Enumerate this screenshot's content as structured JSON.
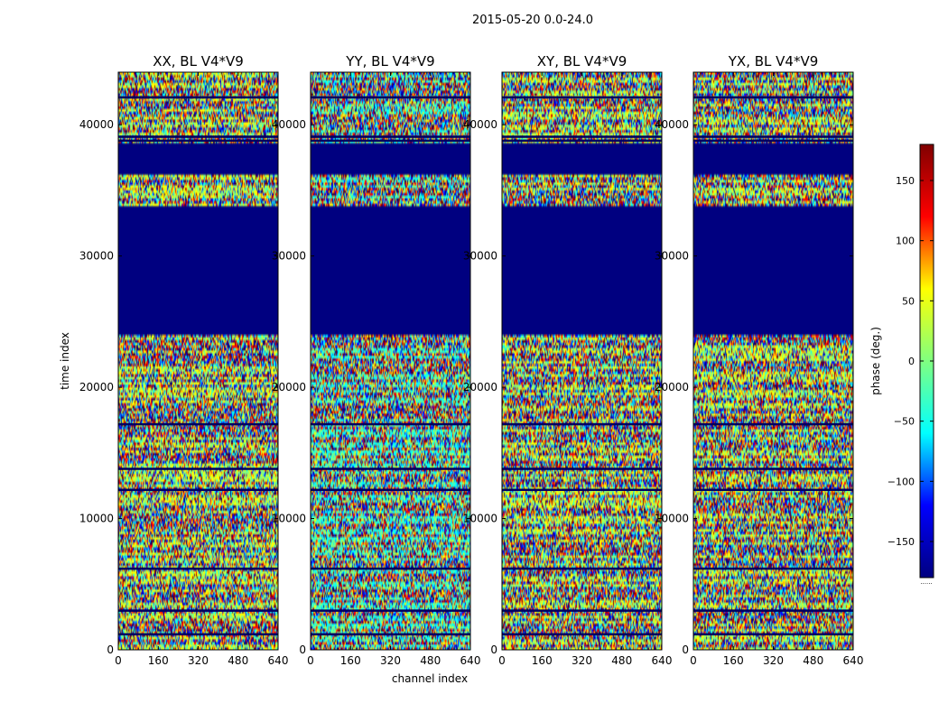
{
  "figure": {
    "title": "2015-05-20 0.0-24.0",
    "x_label": "channel index",
    "y_label": "time index"
  },
  "chart_data": {
    "type": "heatmap",
    "x_range": [
      0,
      640
    ],
    "y_range": [
      0,
      44000
    ],
    "x_ticks": [
      0,
      160,
      320,
      480,
      640
    ],
    "y_ticks": [
      0,
      10000,
      20000,
      30000,
      40000
    ],
    "panels": [
      {
        "title": "XX, BL V4*V9",
        "product": "XX"
      },
      {
        "title": "YY, BL V4*V9",
        "product": "YY"
      },
      {
        "title": "XY, BL V4*V9",
        "product": "XY"
      },
      {
        "title": "YX, BL V4*V9",
        "product": "YX"
      }
    ],
    "flagged_time_ranges": [
      [
        24000,
        33700
      ],
      [
        36200,
        38500
      ]
    ],
    "dark_time_lines": [
      17200,
      13800,
      12200,
      6200,
      3000,
      1200,
      38800,
      39100,
      42100
    ],
    "colorbar": {
      "label": "phase (deg.)",
      "range": [
        -180,
        180
      ],
      "ticks": [
        -150,
        -100,
        -50,
        0,
        50,
        100,
        150
      ],
      "tick_labels": [
        "−150",
        "−100",
        "−50",
        "0",
        "50",
        "100",
        "150"
      ],
      "colormap": [
        "#000080",
        "#0000ff",
        "#00ffff",
        "#80ff80",
        "#ffff00",
        "#ff0000",
        "#800000"
      ],
      "note": "......"
    }
  }
}
